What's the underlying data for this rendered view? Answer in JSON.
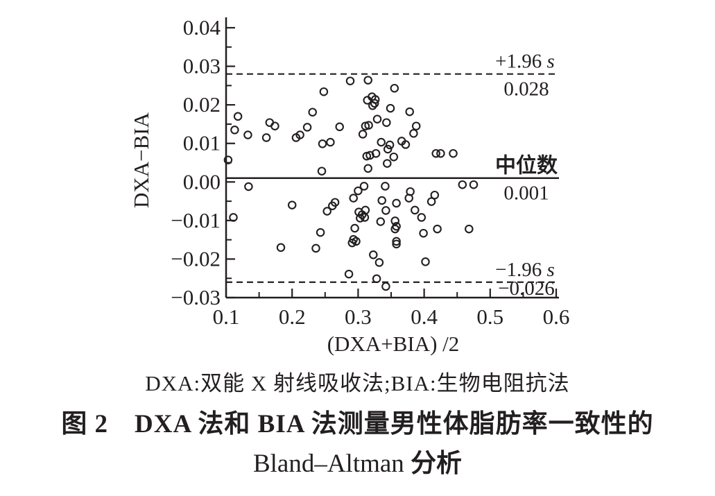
{
  "figure": {
    "background": "#ffffff",
    "ink_color": "#231f20"
  },
  "chart_data": {
    "type": "scatter",
    "title_line1": "图 2　DXA 法和 BIA 法测量男性体脂肪率一致性的",
    "title_line2_latin": "Bland–Altman",
    "title_line2_cjk": " 分析",
    "note": "DXA:双能 X 射线吸收法;BIA:生物电阻抗法",
    "xlabel": "(DXA+BIA) /2",
    "ylabel": "DXA−BIA",
    "xlim": [
      0.1,
      0.6
    ],
    "ylim": [
      -0.03,
      0.04
    ],
    "grid": false,
    "legend": null,
    "x_ticks": {
      "values": [
        0.1,
        0.2,
        0.3,
        0.4,
        0.5,
        0.6
      ],
      "labels": [
        "0.1",
        "0.2",
        "0.3",
        "0.4",
        "0.5",
        "0.6"
      ],
      "minor": [
        0.15,
        0.25,
        0.35,
        0.45,
        0.55
      ]
    },
    "y_ticks": {
      "values": [
        0.04,
        0.03,
        0.02,
        0.01,
        0,
        -0.01,
        -0.02,
        -0.03
      ],
      "labels": [
        "0.04",
        "0.03",
        "0.02",
        "0.01",
        "0.00",
        "−0.01",
        "−0.02",
        "−0.03"
      ],
      "minor": [
        0.035,
        0.025,
        0.015,
        0.005,
        -0.005,
        -0.015,
        -0.025
      ]
    },
    "reference_lines": [
      {
        "name": "upper-loa",
        "y": 0.028,
        "style": "dashed",
        "label_prefix": "+1.96 ",
        "label_italic": "s",
        "value_label": "0.028",
        "value_tight": false
      },
      {
        "name": "median",
        "y": 0.001,
        "style": "solid",
        "label": "中位数",
        "value_label": "0.001",
        "value_tight": false
      },
      {
        "name": "lower-loa",
        "y": -0.026,
        "style": "dashed",
        "label_prefix": "−1.96 ",
        "label_italic": "s",
        "value_label": "−0.026",
        "value_tight": true
      }
    ],
    "points": [
      [
        0.118,
        0.017
      ],
      [
        0.113,
        0.0135
      ],
      [
        0.133,
        0.0122
      ],
      [
        0.103,
        0.0057
      ],
      [
        0.161,
        0.0115
      ],
      [
        0.166,
        0.0154
      ],
      [
        0.174,
        0.0145
      ],
      [
        0.206,
        0.0115
      ],
      [
        0.212,
        0.0122
      ],
      [
        0.223,
        0.0142
      ],
      [
        0.231,
        0.0181
      ],
      [
        0.248,
        0.0234
      ],
      [
        0.246,
        0.0099
      ],
      [
        0.258,
        0.0103
      ],
      [
        0.272,
        0.0143
      ],
      [
        0.288,
        0.0262
      ],
      [
        0.315,
        0.0264
      ],
      [
        0.355,
        0.0243
      ],
      [
        0.321,
        0.0221
      ],
      [
        0.326,
        0.0214
      ],
      [
        0.314,
        0.0212
      ],
      [
        0.325,
        0.0204
      ],
      [
        0.322,
        0.0198
      ],
      [
        0.349,
        0.0191
      ],
      [
        0.378,
        0.0182
      ],
      [
        0.329,
        0.0163
      ],
      [
        0.343,
        0.0154
      ],
      [
        0.311,
        0.0145
      ],
      [
        0.316,
        0.0147
      ],
      [
        0.307,
        0.0124
      ],
      [
        0.388,
        0.0145
      ],
      [
        0.384,
        0.0126
      ],
      [
        0.335,
        0.0103
      ],
      [
        0.348,
        0.0096
      ],
      [
        0.366,
        0.0106
      ],
      [
        0.372,
        0.0097
      ],
      [
        0.345,
        0.0085
      ],
      [
        0.327,
        0.0074
      ],
      [
        0.313,
        0.0067
      ],
      [
        0.318,
        0.0069
      ],
      [
        0.354,
        0.0065
      ],
      [
        0.344,
        0.0048
      ],
      [
        0.315,
        0.0035
      ],
      [
        0.245,
        0.0028
      ],
      [
        0.418,
        0.0074
      ],
      [
        0.425,
        0.0074
      ],
      [
        0.444,
        0.0074
      ],
      [
        0.134,
        -0.0012
      ],
      [
        0.111,
        -0.0092
      ],
      [
        0.183,
        -0.017
      ],
      [
        0.2,
        -0.006
      ],
      [
        0.236,
        -0.0172
      ],
      [
        0.243,
        -0.0131
      ],
      [
        0.253,
        -0.0076
      ],
      [
        0.261,
        -0.0062
      ],
      [
        0.265,
        -0.0053
      ],
      [
        0.293,
        -0.0042
      ],
      [
        0.3,
        -0.0023
      ],
      [
        0.309,
        -0.0011
      ],
      [
        0.301,
        -0.0078
      ],
      [
        0.311,
        -0.0073
      ],
      [
        0.306,
        -0.0085
      ],
      [
        0.303,
        -0.0094
      ],
      [
        0.31,
        -0.0092
      ],
      [
        0.295,
        -0.012
      ],
      [
        0.293,
        -0.0149
      ],
      [
        0.297,
        -0.0154
      ],
      [
        0.291,
        -0.0158
      ],
      [
        0.286,
        -0.0239
      ],
      [
        0.328,
        -0.0251
      ],
      [
        0.342,
        -0.0271
      ],
      [
        0.323,
        -0.0189
      ],
      [
        0.332,
        -0.0209
      ],
      [
        0.341,
        -0.0011
      ],
      [
        0.458,
        -0.0007
      ],
      [
        0.475,
        -0.0007
      ],
      [
        0.379,
        -0.0025
      ],
      [
        0.377,
        -0.0042
      ],
      [
        0.358,
        -0.0055
      ],
      [
        0.416,
        -0.0034
      ],
      [
        0.411,
        -0.0051
      ],
      [
        0.386,
        -0.0073
      ],
      [
        0.396,
        -0.0092
      ],
      [
        0.356,
        -0.0101
      ],
      [
        0.358,
        -0.0115
      ],
      [
        0.356,
        -0.0122
      ],
      [
        0.399,
        -0.0133
      ],
      [
        0.42,
        -0.0122
      ],
      [
        0.468,
        -0.0122
      ],
      [
        0.358,
        -0.0154
      ],
      [
        0.358,
        -0.0161
      ],
      [
        0.402,
        -0.0207
      ],
      [
        0.336,
        -0.0048
      ],
      [
        0.334,
        -0.0103
      ],
      [
        0.342,
        -0.0074
      ]
    ]
  }
}
